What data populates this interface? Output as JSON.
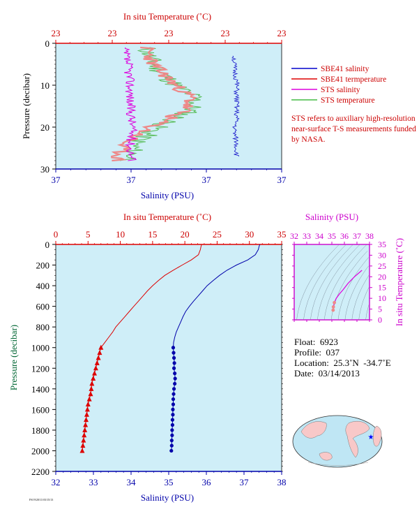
{
  "colors": {
    "plot_bg": "#cfeef8",
    "red": "#dd0000",
    "blue": "#0000aa",
    "magenta": "#dd00dd",
    "green": "#33aa33",
    "pink": "#ee8888",
    "ylabel": "#006633"
  },
  "chart_data": [
    {
      "type": "line",
      "panel": "near-surface",
      "top_axis": {
        "label": "In situ Temperature (˚C)",
        "ticks": [
          "23",
          "23",
          "23",
          "23",
          "23"
        ]
      },
      "bottom_axis": {
        "label": "Salinity (PSU)",
        "ticks": [
          "37",
          "37",
          "37",
          "37"
        ]
      },
      "left_axis": {
        "label": "Pressure (decibar)",
        "ticks": [
          "0",
          "10",
          "20",
          "30"
        ],
        "range": [
          0,
          30
        ]
      },
      "grid": false,
      "legend": {
        "placement": "right",
        "items": [
          {
            "label": "SBE41 salinity",
            "color": "#0000cc"
          },
          {
            "label": "SBE41 termperature",
            "color": "#dd0000"
          },
          {
            "label": "STS salinity",
            "color": "#dd00dd"
          },
          {
            "label": "STS temperature",
            "color": "#44bb44"
          }
        ]
      },
      "note": "STS refers to auxiliary high-resolution near-surface T-S measurements funded by NASA.",
      "series": [
        {
          "name": "SBE41 salinity",
          "pressure": [
            3,
            6,
            9,
            12,
            15,
            18,
            21,
            24,
            27
          ],
          "position": [
            0.79,
            0.79,
            0.8,
            0.8,
            0.8,
            0.8,
            0.79,
            0.8,
            0.8
          ]
        },
        {
          "name": "STS salinity",
          "pressure": [
            1,
            5,
            10,
            15,
            20,
            25,
            28
          ],
          "position": [
            0.3,
            0.32,
            0.33,
            0.33,
            0.34,
            0.33,
            0.34
          ]
        },
        {
          "name": "STS temperature",
          "pressure": [
            1,
            5,
            10,
            13,
            16,
            20,
            24,
            28
          ],
          "position": [
            0.4,
            0.43,
            0.53,
            0.62,
            0.6,
            0.45,
            0.35,
            0.33
          ]
        },
        {
          "name": "SBE41 termperature",
          "pressure": [
            1,
            5,
            10,
            13,
            16,
            20,
            24,
            28
          ],
          "position": [
            0.4,
            0.43,
            0.53,
            0.6,
            0.57,
            0.42,
            0.3,
            0.27
          ]
        }
      ]
    },
    {
      "type": "line",
      "panel": "full-profile",
      "top_axis": {
        "label": "In situ Temperature (˚C)",
        "ticks": [
          "0",
          "5",
          "10",
          "15",
          "20",
          "25",
          "30",
          "35"
        ],
        "range": [
          0,
          35
        ]
      },
      "bottom_axis": {
        "label": "Salinity (PSU)",
        "ticks": [
          "32",
          "33",
          "34",
          "35",
          "36",
          "37",
          "38"
        ],
        "range": [
          32,
          38
        ]
      },
      "left_axis": {
        "label": "Pressure (decibar)",
        "ticks": [
          "0",
          "200",
          "400",
          "600",
          "800",
          "1000",
          "1200",
          "1400",
          "1600",
          "1800",
          "2000",
          "2200"
        ],
        "range": [
          0,
          2200
        ]
      },
      "grid": false,
      "series": [
        {
          "name": "Temperature",
          "axis": "top",
          "pressure": [
            0,
            20,
            50,
            100,
            150,
            200,
            250,
            300,
            350,
            400,
            450,
            500,
            550,
            600,
            650,
            700,
            750,
            800,
            850,
            900,
            950,
            1000,
            1050,
            1100,
            1150,
            1200,
            1250,
            1300,
            1350,
            1400,
            1450,
            1500,
            1550,
            1600,
            1650,
            1700,
            1750,
            1800,
            1850,
            1900,
            1950,
            2000
          ],
          "values": [
            22.6,
            22.5,
            22.4,
            22.1,
            21.0,
            19.6,
            18.2,
            16.9,
            15.9,
            15.0,
            14.2,
            13.5,
            12.8,
            12.1,
            11.4,
            10.7,
            10.0,
            9.3,
            8.8,
            8.2,
            7.6,
            7.0,
            6.8,
            6.6,
            6.4,
            6.2,
            6.0,
            5.8,
            5.6,
            5.5,
            5.4,
            5.2,
            5.0,
            4.9,
            4.8,
            4.7,
            4.6,
            4.5,
            4.4,
            4.3,
            4.2,
            4.1
          ]
        },
        {
          "name": "Salinity",
          "axis": "bottom",
          "pressure": [
            0,
            20,
            50,
            100,
            150,
            200,
            250,
            300,
            350,
            400,
            450,
            500,
            550,
            600,
            650,
            700,
            750,
            800,
            850,
            900,
            950,
            1000,
            1050,
            1100,
            1150,
            1200,
            1250,
            1300,
            1350,
            1400,
            1450,
            1500,
            1550,
            1600,
            1650,
            1700,
            1750,
            1800,
            1850,
            1900,
            1950,
            2000
          ],
          "values": [
            37.42,
            37.4,
            37.38,
            37.3,
            37.1,
            36.8,
            36.55,
            36.35,
            36.18,
            36.02,
            35.9,
            35.78,
            35.66,
            35.55,
            35.45,
            35.38,
            35.32,
            35.26,
            35.2,
            35.16,
            35.13,
            35.12,
            35.13,
            35.14,
            35.15,
            35.14,
            35.16,
            35.17,
            35.16,
            35.14,
            35.13,
            35.12,
            35.12,
            35.11,
            35.11,
            35.1,
            35.1,
            35.09,
            35.09,
            35.08,
            35.08,
            35.07
          ]
        }
      ]
    },
    {
      "type": "scatter",
      "panel": "T-S diagram",
      "top_axis": {
        "label": "Salinity (PSU)",
        "ticks": [
          "32",
          "33",
          "34",
          "35",
          "36",
          "37",
          "38"
        ],
        "range": [
          32,
          38
        ]
      },
      "right_axis": {
        "label": "In situ Temperature (˚C)",
        "ticks": [
          "0",
          "5",
          "10",
          "15",
          "20",
          "25",
          "30",
          "35"
        ],
        "range": [
          0,
          35
        ]
      },
      "series": [
        {
          "name": "Profile",
          "salinity": [
            35.1,
            35.12,
            35.2,
            35.35,
            35.6,
            35.9,
            36.3,
            36.8,
            37.4
          ],
          "temperature": [
            4.5,
            6,
            8,
            10,
            12,
            14,
            17,
            20,
            23
          ]
        }
      ]
    }
  ],
  "info": {
    "float": "Float:  6923",
    "profile": "Profile:  037",
    "location": "Location:  25.3˚N  -34.7˚E",
    "date": "Date:  03/14/2013"
  },
  "footer": "FSI 9/20/13 03/15/13"
}
